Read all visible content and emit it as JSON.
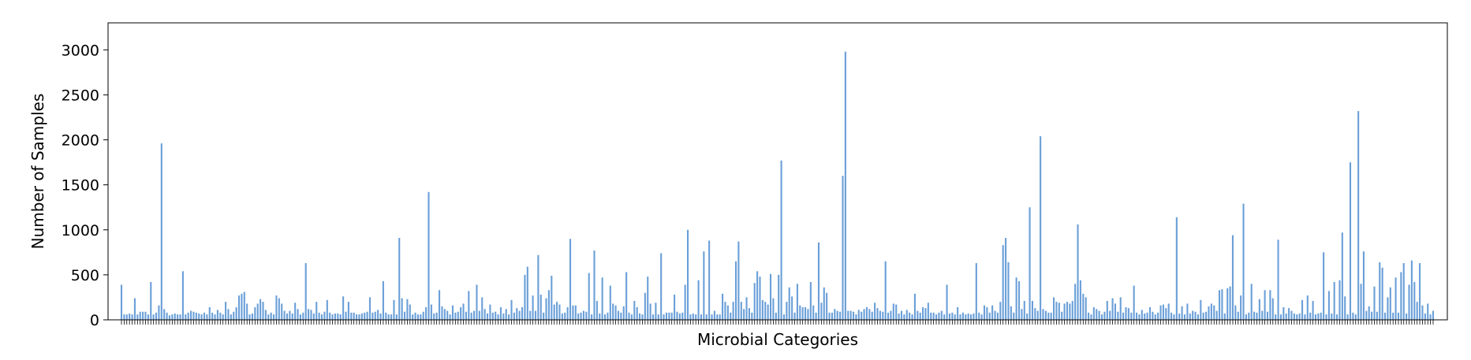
{
  "chart_data": {
    "type": "bar",
    "title": "",
    "xlabel": "Microbial Categories",
    "ylabel": "Number of Samples",
    "ylim": [
      0,
      3300
    ],
    "yticks": [
      0,
      500,
      1000,
      1500,
      2000,
      2500,
      3000
    ],
    "bar_color": "#6a9fd8",
    "grid": false,
    "xtick_labels_shown": false,
    "values": [
      390,
      60,
      60,
      70,
      60,
      240,
      60,
      90,
      90,
      90,
      60,
      420,
      60,
      80,
      160,
      1960,
      120,
      80,
      50,
      60,
      70,
      60,
      60,
      540,
      60,
      80,
      100,
      90,
      80,
      70,
      60,
      80,
      60,
      140,
      80,
      60,
      110,
      80,
      60,
      200,
      120,
      60,
      90,
      140,
      270,
      290,
      310,
      180,
      60,
      70,
      140,
      180,
      230,
      200,
      110,
      60,
      80,
      60,
      270,
      240,
      180,
      100,
      70,
      100,
      70,
      190,
      120,
      60,
      80,
      630,
      120,
      110,
      70,
      200,
      80,
      60,
      90,
      220,
      80,
      60,
      70,
      70,
      60,
      260,
      90,
      200,
      80,
      80,
      60,
      60,
      70,
      80,
      90,
      250,
      80,
      90,
      110,
      70,
      430,
      80,
      60,
      60,
      220,
      60,
      910,
      240,
      90,
      230,
      170,
      60,
      80,
      60,
      60,
      90,
      140,
      1420,
      170,
      70,
      80,
      330,
      150,
      120,
      100,
      60,
      160,
      80,
      90,
      140,
      180,
      90,
      320,
      80,
      100,
      390,
      100,
      250,
      120,
      70,
      170,
      80,
      90,
      60,
      140,
      70,
      120,
      60,
      220,
      80,
      130,
      100,
      140,
      500,
      590,
      100,
      270,
      100,
      720,
      280,
      80,
      240,
      330,
      490,
      170,
      200,
      170,
      70,
      80,
      140,
      900,
      160,
      160,
      70,
      80,
      100,
      90,
      520,
      60,
      770,
      210,
      70,
      470,
      60,
      80,
      380,
      180,
      160,
      100,
      80,
      150,
      530,
      80,
      60,
      210,
      140,
      70,
      60,
      300,
      480,
      180,
      60,
      190,
      60,
      740,
      60,
      80,
      80,
      80,
      280,
      90,
      70,
      80,
      390,
      1000,
      60,
      70,
      60,
      440,
      60,
      760,
      60,
      880,
      60,
      100,
      60,
      60,
      290,
      200,
      160,
      80,
      200,
      650,
      870,
      200,
      120,
      250,
      130,
      80,
      410,
      540,
      480,
      220,
      200,
      170,
      510,
      240,
      80,
      500,
      1770,
      60,
      200,
      360,
      260,
      80,
      400,
      160,
      140,
      140,
      120,
      420,
      160,
      80,
      860,
      190,
      360,
      300,
      80,
      80,
      120,
      100,
      90,
      1600,
      2980,
      100,
      100,
      90,
      60,
      110,
      90,
      120,
      140,
      120,
      90,
      190,
      130,
      100,
      90,
      650,
      80,
      100,
      180,
      170,
      70,
      100,
      60,
      110,
      80,
      60,
      290,
      100,
      80,
      140,
      130,
      190,
      80,
      80,
      60,
      80,
      100,
      60,
      390,
      70,
      80,
      60,
      140,
      60,
      80,
      60,
      70,
      60,
      70,
      630,
      80,
      60,
      160,
      140,
      80,
      160,
      100,
      80,
      200,
      830,
      910,
      640,
      150,
      80,
      470,
      430,
      120,
      210,
      70,
      1250,
      210,
      130,
      100,
      2040,
      120,
      100,
      80,
      80,
      250,
      200,
      190,
      90,
      180,
      200,
      180,
      210,
      400,
      1060,
      440,
      290,
      250,
      80,
      60,
      140,
      120,
      100,
      60,
      90,
      210,
      100,
      240,
      180,
      90,
      250,
      80,
      140,
      130,
      80,
      380,
      80,
      60,
      110,
      70,
      80,
      140,
      90,
      60,
      80,
      160,
      170,
      130,
      180,
      80,
      60,
      1140,
      70,
      150,
      60,
      180,
      70,
      100,
      90,
      60,
      220,
      80,
      90,
      150,
      180,
      160,
      100,
      330,
      340,
      70,
      350,
      370,
      940,
      160,
      90,
      270,
      1290,
      60,
      80,
      400,
      90,
      80,
      230,
      100,
      330,
      90,
      330,
      240,
      60,
      890,
      60,
      140,
      70,
      130,
      100,
      70,
      60,
      70,
      220,
      60,
      270,
      80,
      210,
      60,
      70,
      80,
      750,
      60,
      320,
      70,
      420,
      60,
      440,
      970,
      260,
      60,
      1750,
      80,
      60,
      2320,
      400,
      760,
      100,
      150,
      90,
      370,
      90,
      640,
      580,
      80,
      250,
      360,
      80,
      470,
      80,
      530,
      630,
      70,
      390,
      660,
      420,
      200,
      630,
      160,
      70,
      180,
      60,
      100
    ]
  }
}
